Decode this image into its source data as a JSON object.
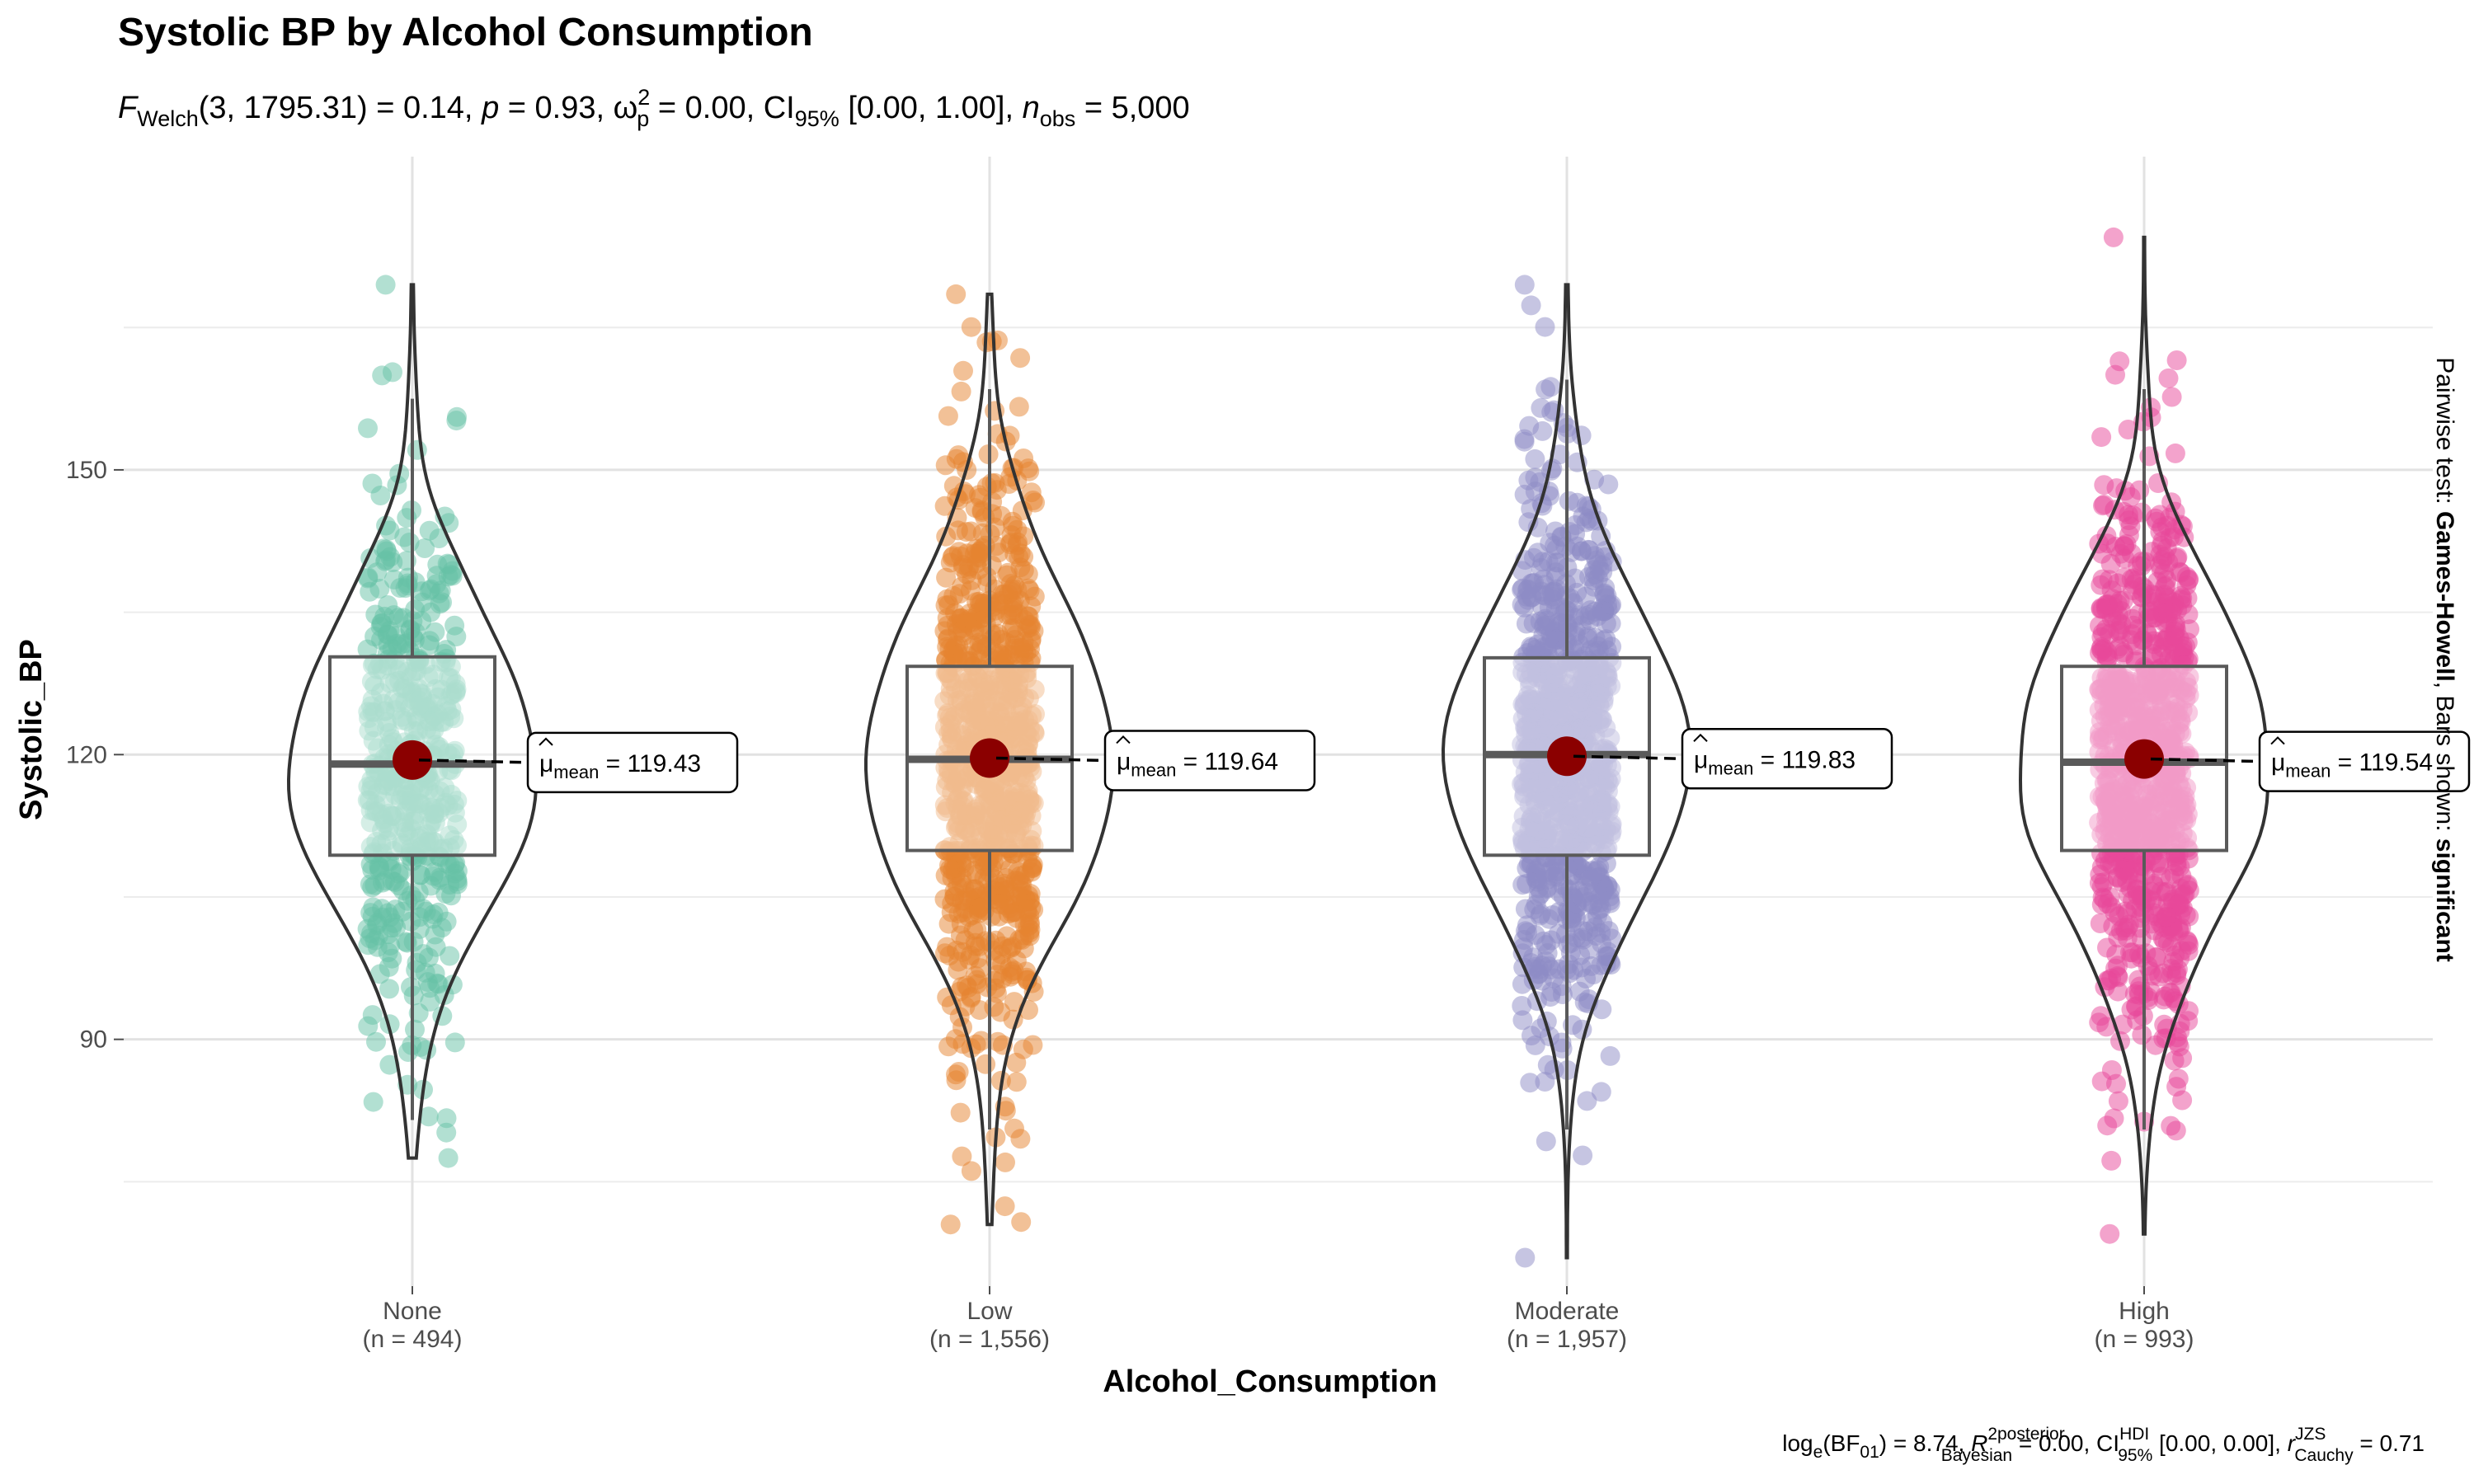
{
  "chart_data": {
    "type": "violin-box-scatter",
    "title": "Systolic BP by Alcohol Consumption",
    "subtitle": {
      "F": "F",
      "F_sub": "Welch",
      "F_args": "(3, 1795.31) = 0.14, ",
      "p_label": "p",
      "p_value": " = 0.93, ",
      "omega": "ω",
      "omega_sup": "2",
      "omega_sub": "p",
      "omega_value": " = 0.00, CI",
      "ci_sub": "95%",
      "ci_value": " [0.00, 1.00], ",
      "n_label": "n",
      "n_sub": "obs",
      "n_value": " = 5,000"
    },
    "xlabel": "Alcohol_Consumption",
    "ylabel": "Systolic_BP",
    "ylim": [
      64,
      183
    ],
    "yticks": [
      90,
      120,
      150
    ],
    "yminor": [
      75,
      105,
      135,
      165
    ],
    "grid": true,
    "categories": [
      {
        "name": "None",
        "n_label": "(n = 494)",
        "n": 494,
        "color": "#66C2A5",
        "mean": 119.43,
        "mean_label": "119.43",
        "q1": 109.4,
        "median": 119.0,
        "q3": 130.3,
        "whisker_low": 81.5,
        "whisker_high": 157.5,
        "min": 77.5,
        "max": 169.5
      },
      {
        "name": "Low",
        "n_label": "(n = 1,556)",
        "n": 1556,
        "color": "#E6832F",
        "mean": 119.64,
        "mean_label": "119.64",
        "q1": 109.9,
        "median": 119.5,
        "q3": 129.3,
        "whisker_low": 80.5,
        "whisker_high": 158.5,
        "min": 70.5,
        "max": 168.5
      },
      {
        "name": "Moderate",
        "n_label": "(n = 1,957)",
        "n": 1957,
        "color": "#8E8BC5",
        "mean": 119.83,
        "mean_label": "119.83",
        "q1": 109.4,
        "median": 120.0,
        "q3": 130.2,
        "whisker_low": 80.5,
        "whisker_high": 159.5,
        "min": 67.0,
        "max": 169.5
      },
      {
        "name": "High",
        "n_label": "(n = 993)",
        "n": 993,
        "color": "#E8479A",
        "mean": 119.54,
        "mean_label": "119.54",
        "q1": 109.9,
        "median": 119.2,
        "q3": 129.3,
        "whisker_low": 80.5,
        "whisker_high": 158.5,
        "min": 69.5,
        "max": 174.5
      }
    ],
    "mean_point_color": "#8B0000",
    "mean_label_prefix": "μ",
    "mean_label_sub": "mean",
    "mean_label_eq": " = ",
    "side_note": {
      "part1": "Pairwise test: ",
      "part2": "Games-Howell",
      "part3": ", Bars shown: ",
      "part4": "significant"
    },
    "caption": {
      "log": "log",
      "log_sub": "e",
      "bf": "(BF",
      "bf_sub": "01",
      "bf_value": ") = 8.74, ",
      "r2": "R",
      "r2_sup": "2",
      "r2_sup2": "posterior",
      "r2_sub": "Bayesian",
      "r2_value": " = 0.00, CI",
      "ci_sup": "HDI",
      "ci_sub": "95%",
      "ci_value": " [0.00, 0.00], ",
      "r": "r",
      "r_sup": "JZS",
      "r_sub": "Cauchy",
      "r_value": " = 0.71"
    }
  }
}
